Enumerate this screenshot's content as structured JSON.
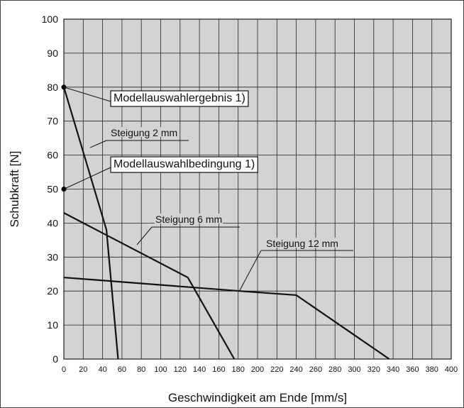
{
  "chart_data": {
    "type": "line",
    "title": "",
    "xlabel": "Geschwindigkeit am Ende [mm/s]",
    "ylabel": "Schubkraft [N]",
    "xlim": [
      0,
      400
    ],
    "ylim": [
      0,
      100
    ],
    "x_ticks": [
      0,
      20,
      40,
      60,
      80,
      100,
      120,
      140,
      160,
      180,
      200,
      220,
      240,
      260,
      280,
      300,
      320,
      340,
      360,
      380,
      400
    ],
    "y_ticks": [
      0,
      10,
      20,
      30,
      40,
      50,
      60,
      70,
      80,
      90,
      100
    ],
    "grid": true,
    "background": "#d3d3d3",
    "line_color": "#111111",
    "series": [
      {
        "name": "Steigung 2 mm",
        "points": [
          [
            0,
            80
          ],
          [
            44,
            38
          ],
          [
            56,
            0
          ]
        ]
      },
      {
        "name": "Steigung 6 mm",
        "points": [
          [
            0,
            43
          ],
          [
            128,
            24
          ],
          [
            176,
            0
          ]
        ]
      },
      {
        "name": "Steigung 12 mm",
        "points": [
          [
            0,
            24
          ],
          [
            182,
            20
          ],
          [
            240,
            18.8
          ],
          [
            336,
            0
          ]
        ]
      }
    ],
    "markers": [
      {
        "x": 0,
        "y": 80
      },
      {
        "x": 0,
        "y": 50
      }
    ],
    "annotations": [
      {
        "id": "ergebnis",
        "text": "Modellauswahlergebnis 1)",
        "boxed": true
      },
      {
        "id": "bedingung",
        "text": "Modellauswahlbedingung 1)",
        "boxed": true
      },
      {
        "id": "s2",
        "text": "Steigung 2 mm",
        "boxed": false
      },
      {
        "id": "s6",
        "text": "Steigung 6 mm",
        "boxed": false
      },
      {
        "id": "s12",
        "text": "Steigung 12 mm",
        "boxed": false
      }
    ]
  }
}
